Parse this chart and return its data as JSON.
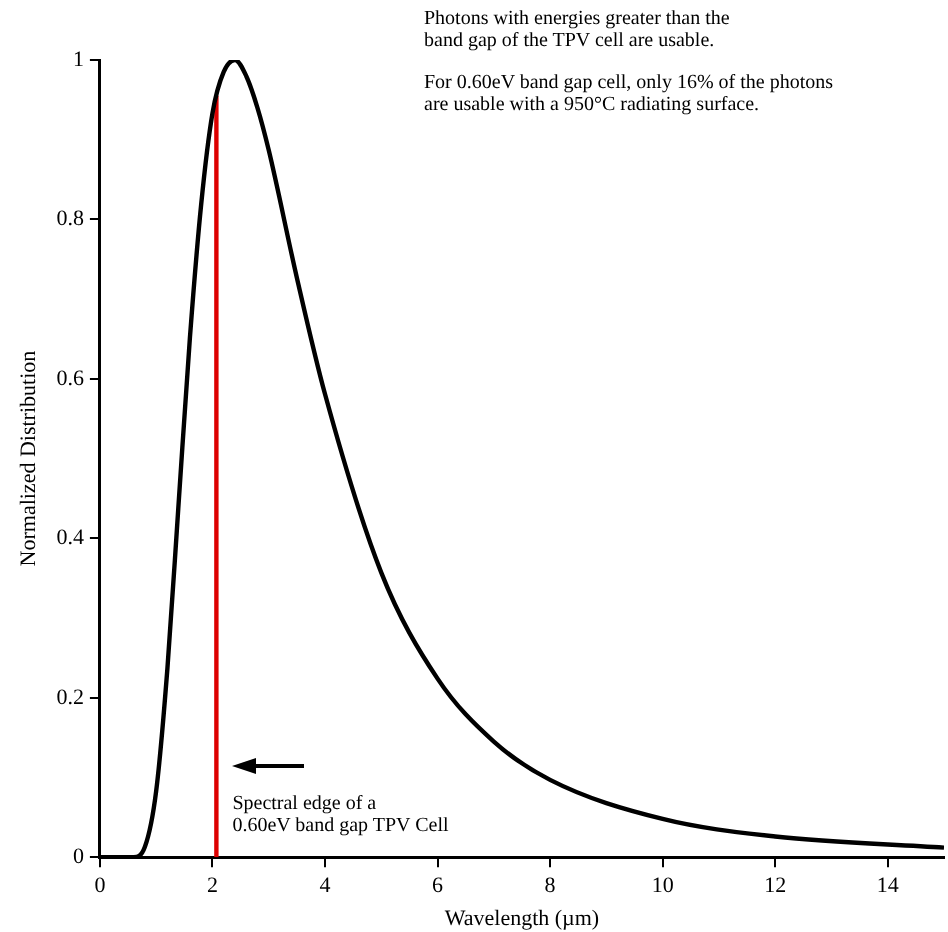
{
  "chart_data": {
    "type": "line",
    "xlabel": "Wavelength (µm)",
    "ylabel": "Normalized Distribution",
    "xlim": [
      0,
      15
    ],
    "xticks": [
      0,
      2,
      4,
      6,
      8,
      10,
      12,
      14
    ],
    "ylim": [
      0,
      1
    ],
    "yticks": [
      0,
      0.2,
      0.4,
      0.6,
      0.8,
      1
    ],
    "grid": false,
    "legend": false,
    "marker": "none",
    "line_style": "solid",
    "series": [
      {
        "color": "#000000",
        "x": [
          0,
          0.6,
          0.8,
          1.0,
          1.2,
          1.4,
          1.6,
          1.8,
          2.0,
          2.2,
          2.4,
          2.6,
          2.8,
          3.0,
          3.5,
          4,
          5,
          6,
          7,
          8,
          10,
          12,
          15
        ],
        "values": [
          0,
          0,
          0.013,
          0.083,
          0.237,
          0.445,
          0.652,
          0.819,
          0.933,
          0.985,
          1.0,
          0.98,
          0.94,
          0.887,
          0.727,
          0.581,
          0.357,
          0.224,
          0.145,
          0.097,
          0.048,
          0.026,
          0.012
        ]
      },
      {
        "color": "#dd0000",
        "x": [
          2.07,
          2.07
        ],
        "values": [
          0,
          0.955
        ]
      }
    ],
    "annotations": [
      {
        "text": "Spectral edge of a\n0.60eV band gap TPV Cell",
        "x": 2.07,
        "y": 0.08
      },
      "Photons with energies greater than the\nband gap of the TPV cell are usable.",
      "For 0.60eV band gap cell, only 16% of the photons\nare usable with a 950°C radiating surface."
    ]
  }
}
